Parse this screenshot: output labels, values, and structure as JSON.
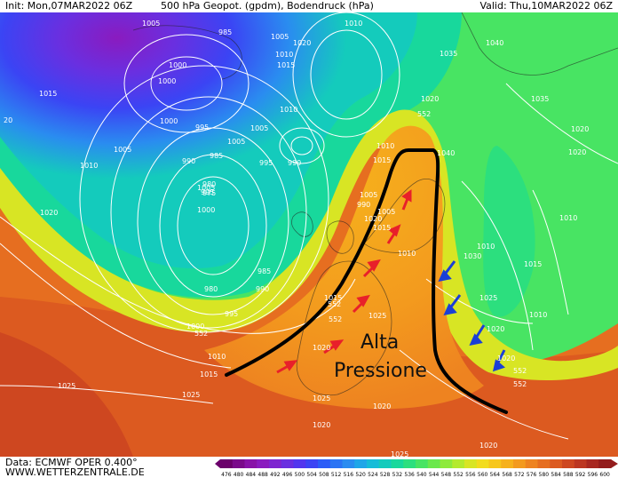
{
  "header": {
    "init": "Init: Mon,07MAR2022 06Z",
    "title": "500 hPa Geopot. (gpdm), Bodendruck (hPa)",
    "valid": "Valid: Thu,10MAR2022 06Z"
  },
  "annotation": {
    "line1": "Alta",
    "line2": "Pressione"
  },
  "footer": {
    "data": "Data: ECMWF OPER 0.400°",
    "site": "WWW.WETTERZENTRALE.DE"
  },
  "scale": {
    "ticks": [
      "476",
      "480",
      "484",
      "488",
      "492",
      "496",
      "500",
      "504",
      "508",
      "512",
      "516",
      "520",
      "524",
      "528",
      "532",
      "536",
      "540",
      "544",
      "548",
      "552",
      "556",
      "560",
      "564",
      "568",
      "572",
      "576",
      "580",
      "584",
      "588",
      "592",
      "596",
      "600"
    ],
    "colors": [
      "#6b006b",
      "#7a0a8a",
      "#8812a8",
      "#8a1bbf",
      "#7e25d0",
      "#6a2fe0",
      "#5236ee",
      "#3b44f4",
      "#2b5cf7",
      "#2a74f4",
      "#2a8cf0",
      "#1fa6e8",
      "#16bcd8",
      "#14cbbc",
      "#18d89c",
      "#2cdf7e",
      "#48e463",
      "#6ae84c",
      "#8eea3c",
      "#b4ea2e",
      "#d8e524",
      "#f2dc1e",
      "#f7c71c",
      "#f6b11c",
      "#f39a1e",
      "#ee8320",
      "#e66e20",
      "#dc5a20",
      "#ce4720",
      "#bc3621",
      "#a82720",
      "#931c1c"
    ]
  },
  "map_labels": [
    "1005",
    "985",
    "1000",
    "1005",
    "1020",
    "1010",
    "1010",
    "1015",
    "1010",
    "1005",
    "1005",
    "995",
    "990",
    "1035",
    "1040",
    "1015",
    "1000",
    "1000",
    "995",
    "1020",
    "1035",
    "1020",
    "20",
    "1010",
    "985",
    "1005",
    "1010",
    "1015",
    "1040",
    "1020",
    "1020",
    "990",
    "1005",
    "995",
    "990",
    "1000",
    "1005",
    "1005",
    "980",
    "975",
    "1020",
    "1015",
    "1010",
    "1030",
    "1010",
    "985",
    "1010",
    "980",
    "990",
    "1015",
    "1015",
    "1025",
    "995",
    "1010",
    "1025",
    "1020",
    "1000",
    "552",
    "1020",
    "1010",
    "1015",
    "1020",
    "1025",
    "1025",
    "1020",
    "1025",
    "1020",
    "1020",
    "1025",
    "552"
  ],
  "isohypse_labels": [
    "552",
    "552",
    "552",
    "552"
  ]
}
